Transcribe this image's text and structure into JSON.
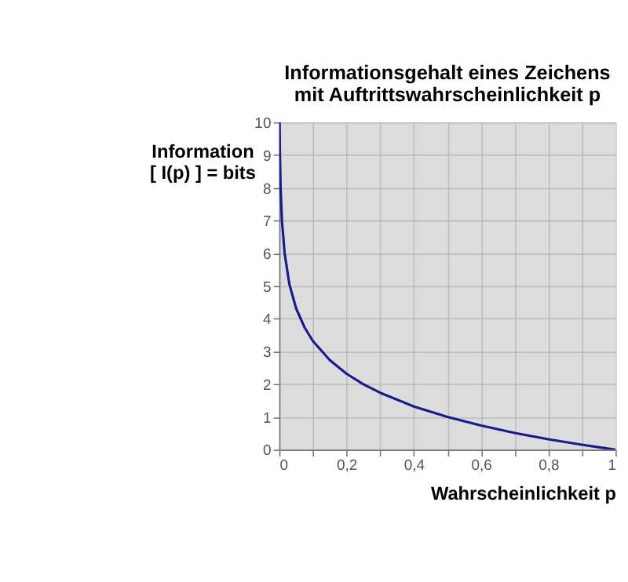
{
  "chart_data": {
    "type": "line",
    "title": "Informationsgehalt eines Zeichens\nmit Auftrittswahrscheinlichkeit p",
    "xlabel": "Wahrscheinlichkeit p",
    "ylabel": "Information\n[ I(p) ] = bits",
    "x": [
      0.001,
      0.002,
      0.004,
      0.008,
      0.016,
      0.03,
      0.05,
      0.075,
      0.1,
      0.15,
      0.2,
      0.25,
      0.3,
      0.4,
      0.5,
      0.6,
      0.7,
      0.8,
      0.9,
      1
    ],
    "series": [
      {
        "color": "#1a1a8c",
        "values": [
          10,
          9,
          8,
          7,
          6,
          5.06,
          4.32,
          3.74,
          3.32,
          2.74,
          2.32,
          2,
          1.74,
          1.32,
          1,
          0.74,
          0.51,
          0.32,
          0.15,
          0
        ]
      }
    ],
    "xlim": [
      0,
      1
    ],
    "ylim": [
      0,
      10
    ],
    "xticks": [
      0,
      {
        "value": 0.1,
        "label": null
      },
      {
        "value": 0.2,
        "label": "0,2"
      },
      {
        "value": 0.3,
        "label": null
      },
      {
        "value": 0.4,
        "label": "0,4"
      },
      {
        "value": 0.5,
        "label": null
      },
      {
        "value": 0.6,
        "label": "0,6"
      },
      {
        "value": 0.7,
        "label": null
      },
      {
        "value": 0.8,
        "label": "0,8"
      },
      {
        "value": 0.9,
        "label": null
      },
      1
    ],
    "yticks": [
      0,
      1,
      2,
      3,
      4,
      5,
      6,
      7,
      8,
      9,
      10
    ],
    "grid": true,
    "marker": "none",
    "line_style": "solid"
  }
}
